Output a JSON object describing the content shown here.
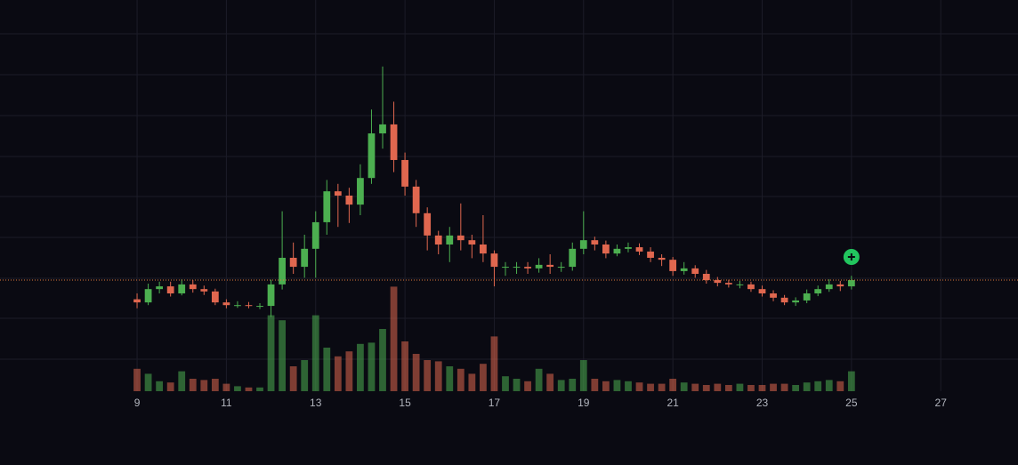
{
  "chart_data": {
    "type": "candlestick",
    "x": [
      9,
      9.25,
      9.5,
      9.75,
      10,
      10.25,
      10.5,
      10.75,
      11,
      11.25,
      11.5,
      11.75,
      12,
      12.25,
      12.5,
      12.75,
      13,
      13.25,
      13.5,
      13.75,
      14,
      14.25,
      14.5,
      14.75,
      15,
      15.25,
      15.5,
      15.75,
      16,
      16.25,
      16.5,
      16.75,
      17,
      17.25,
      17.5,
      17.75,
      18,
      18.25,
      18.5,
      18.75,
      19,
      19.25,
      19.5,
      19.75,
      20,
      20.25,
      20.5,
      20.75,
      21,
      21.25,
      21.5,
      21.75,
      22,
      22.25,
      22.5,
      22.75,
      23,
      23.25,
      23.5,
      23.75,
      24,
      24.25,
      24.5,
      24.75,
      25
    ],
    "open": [
      23.5,
      22.7,
      26.1,
      26.8,
      25,
      27.3,
      26.1,
      25.5,
      22.7,
      22,
      22,
      21.8,
      21.8,
      27.3,
      34.1,
      31.8,
      36.4,
      43.2,
      51.1,
      50,
      47.7,
      54.5,
      65.9,
      68.2,
      59.1,
      52.3,
      45.5,
      39.8,
      37.5,
      39.8,
      38.6,
      37.5,
      35.2,
      31.8,
      31.8,
      31.8,
      31.4,
      32.3,
      31.8,
      31.8,
      36.4,
      38.6,
      37.5,
      35.2,
      36.4,
      36.8,
      35.7,
      34.1,
      33.6,
      30.7,
      31.4,
      30,
      28.4,
      27.7,
      27.3,
      27.3,
      26.1,
      25,
      23.9,
      22.7,
      23.2,
      25,
      26.1,
      27.3,
      26.8
    ],
    "high": [
      25,
      27.5,
      28,
      28,
      28.6,
      28.4,
      27,
      26.2,
      23.5,
      23,
      22.8,
      22.5,
      28.5,
      46,
      38,
      40,
      46,
      54,
      53,
      52,
      58,
      72,
      83,
      74,
      61,
      54,
      47,
      41,
      42,
      48,
      40,
      45,
      36,
      33,
      33,
      33,
      34,
      35,
      33,
      38,
      46,
      39.5,
      38.5,
      37.5,
      38,
      37.8,
      36.8,
      35,
      34.3,
      33,
      32.2,
      31,
      29.2,
      28.5,
      28.2,
      28,
      27,
      25.8,
      24.6,
      24,
      26,
      27,
      28.6,
      28.2,
      29.5
    ],
    "low": [
      21.2,
      22,
      25,
      24.2,
      24.5,
      25.2,
      24.6,
      22,
      21.2,
      21.3,
      21.2,
      21,
      19,
      26,
      30,
      29,
      29,
      40,
      42,
      43,
      45,
      53,
      62,
      56,
      50,
      42,
      36,
      35,
      33,
      36,
      34,
      33,
      26.8,
      29.5,
      30,
      30,
      30.3,
      30,
      30.5,
      30.8,
      35,
      36,
      34,
      34.5,
      35.5,
      34.8,
      33,
      32,
      29.5,
      29.8,
      29,
      27.5,
      26.8,
      26.5,
      26.3,
      25.4,
      24.2,
      23,
      22,
      21.8,
      22.5,
      24.3,
      25.4,
      25.6,
      26
    ],
    "close": [
      22.7,
      26.1,
      26.8,
      25,
      27.3,
      26.1,
      25.5,
      22.7,
      22,
      22,
      21.8,
      21.8,
      27.3,
      34.1,
      31.8,
      36.4,
      43.2,
      51.1,
      50,
      47.7,
      54.5,
      65.9,
      68.2,
      59.1,
      52.3,
      45.5,
      39.8,
      37.5,
      39.8,
      38.6,
      37.5,
      35.2,
      31.8,
      31.8,
      31.8,
      31.4,
      32.3,
      31.8,
      31.8,
      36.4,
      38.6,
      37.5,
      35.2,
      36.4,
      36.8,
      35.7,
      34.1,
      33.6,
      30.7,
      31.4,
      30,
      28.4,
      27.7,
      27.3,
      27.3,
      26.1,
      25,
      23.9,
      22.7,
      23.2,
      25,
      26.1,
      27.3,
      26.8,
      28.4
    ],
    "volume": [
      18,
      14,
      8,
      7,
      16,
      10,
      9,
      10,
      6,
      4,
      3,
      3,
      61,
      57,
      20,
      25,
      61,
      35,
      28,
      32,
      38,
      39,
      50,
      84,
      40,
      30,
      25,
      24,
      20,
      18,
      14,
      22,
      44,
      12,
      10,
      8,
      18,
      14,
      9,
      10,
      25,
      10,
      8,
      9,
      8,
      7,
      6,
      6,
      10,
      7,
      6,
      5,
      6,
      5,
      6,
      5,
      5,
      6,
      6,
      5,
      7,
      8,
      9,
      8,
      16
    ],
    "xlim": [
      5.93,
      28.73
    ],
    "xticks": [
      9,
      11,
      13,
      15,
      17,
      19,
      21,
      23,
      25,
      27
    ],
    "ylim": [
      0,
      100
    ],
    "volume_lim": [
      0,
      100
    ],
    "up_color": "#4caf50",
    "down_color": "#e0674f",
    "price_line_color": "#e07a3c",
    "grid": true
  }
}
